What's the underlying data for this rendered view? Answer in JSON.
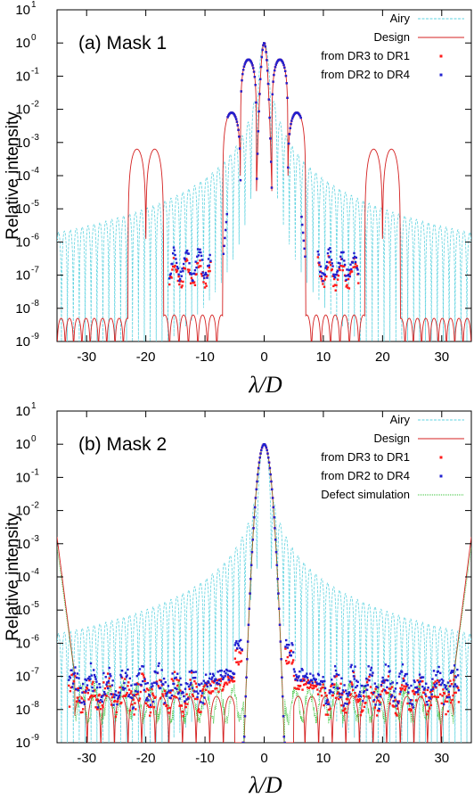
{
  "chart_data": [
    {
      "type": "line",
      "panel_label": "(a) Mask 1",
      "xlabel": "λ/D",
      "ylabel": "Relative intensity",
      "xlim": [
        -35,
        35
      ],
      "ylim_log10": [
        -9,
        1
      ],
      "y_scale": "log",
      "x_ticks": [
        -30,
        -20,
        -10,
        0,
        10,
        20,
        30
      ],
      "y_tick_exponents": [
        -9,
        -8,
        -7,
        -6,
        -5,
        -4,
        -3,
        -2,
        -1,
        0,
        1
      ],
      "grid": false,
      "legend_position": "top-right",
      "series": [
        {
          "name": "Airy",
          "style": "dashed-line",
          "color": "#5fd3e0"
        },
        {
          "name": "Design",
          "style": "line",
          "color": "#d42020"
        },
        {
          "name": "from DR3 to DR1",
          "style": "points",
          "color": "#ff1a1a"
        },
        {
          "name": "from DR2 to DR4",
          "style": "points",
          "color": "#2020d0"
        }
      ]
    },
    {
      "type": "line",
      "panel_label": "(b) Mask 2",
      "xlabel": "λ/D",
      "ylabel": "Relative intensity",
      "xlim": [
        -35,
        35
      ],
      "ylim_log10": [
        -9,
        1
      ],
      "y_scale": "log",
      "x_ticks": [
        -30,
        -20,
        -10,
        0,
        10,
        20,
        30
      ],
      "y_tick_exponents": [
        -9,
        -8,
        -7,
        -6,
        -5,
        -4,
        -3,
        -2,
        -1,
        0,
        1
      ],
      "grid": false,
      "legend_position": "top-right",
      "series": [
        {
          "name": "Airy",
          "style": "dashed-line",
          "color": "#5fd3e0"
        },
        {
          "name": "Design",
          "style": "line",
          "color": "#d42020"
        },
        {
          "name": "from DR3 to DR1",
          "style": "points",
          "color": "#ff1a1a"
        },
        {
          "name": "from DR2 to DR4",
          "style": "points",
          "color": "#2020d0"
        },
        {
          "name": "Defect simulation",
          "style": "dotted-line",
          "color": "#30c030"
        }
      ]
    }
  ]
}
